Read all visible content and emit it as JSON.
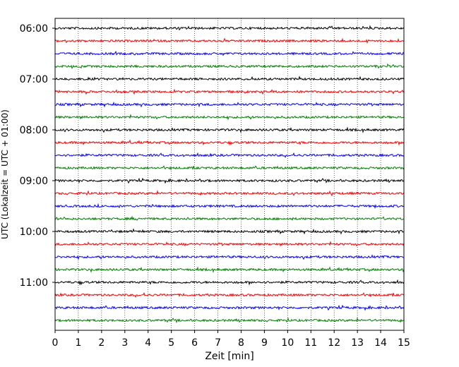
{
  "chart_data": {
    "type": "line",
    "title": "",
    "xlabel": "Zeit  [min]",
    "ylabel": "UTC (Lokalzeit = UTC + 01:00)",
    "xlim": [
      0,
      15
    ],
    "x_ticks": [
      "0",
      "1",
      "2",
      "3",
      "4",
      "5",
      "6",
      "7",
      "8",
      "9",
      "10",
      "11",
      "12",
      "13",
      "14",
      "15"
    ],
    "y_ticks": [
      "06:00",
      "07:00",
      "08:00",
      "09:00",
      "10:00",
      "11:00"
    ],
    "grid": "x-dotted",
    "trace_colors": [
      "#000000",
      "#ff0000",
      "#0000ff",
      "#008000"
    ],
    "series": [
      {
        "start": "06:00"
      },
      {
        "start": "06:15"
      },
      {
        "start": "06:30"
      },
      {
        "start": "06:45"
      },
      {
        "start": "07:00"
      },
      {
        "start": "07:15"
      },
      {
        "start": "07:30"
      },
      {
        "start": "07:45"
      },
      {
        "start": "08:00"
      },
      {
        "start": "08:15"
      },
      {
        "start": "08:30"
      },
      {
        "start": "08:45"
      },
      {
        "start": "09:00"
      },
      {
        "start": "09:15"
      },
      {
        "start": "09:30"
      },
      {
        "start": "09:45"
      },
      {
        "start": "10:00"
      },
      {
        "start": "10:15"
      },
      {
        "start": "10:30"
      },
      {
        "start": "10:45"
      },
      {
        "start": "11:00"
      },
      {
        "start": "11:15"
      },
      {
        "start": "11:30"
      },
      {
        "start": "11:45"
      }
    ]
  }
}
